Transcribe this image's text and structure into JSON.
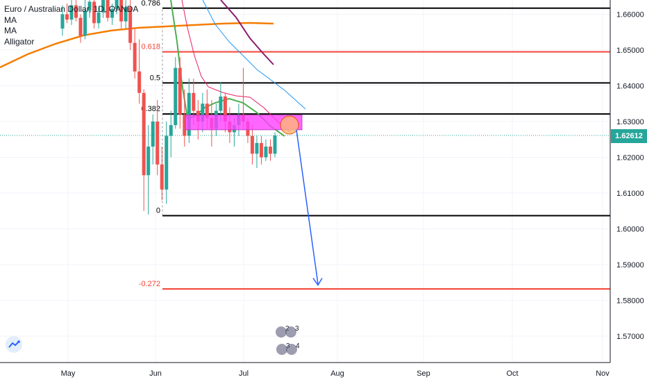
{
  "legend": {
    "symbol": "Euro / Australian Dollar, 1D, OANDA",
    "ma1": "MA",
    "ma2": "MA",
    "alligator": "Alligator"
  },
  "price_tag": "1.62612",
  "colors": {
    "up": "#26a69a",
    "down": "#ef5350",
    "fib_black": "#000000",
    "fib_red": "#f44336",
    "ma_orange": "#f57c00",
    "jaw": "#2196f3",
    "teeth": "#e91e63",
    "lips": "#4caf50",
    "purple": "#8e1b6c",
    "zone": "#ff40ff",
    "arrow": "#2962ff",
    "price_line": "#26a69a"
  },
  "chart_data": {
    "type": "candlestick",
    "y_ticks": [
      "1.57000",
      "1.58000",
      "1.59000",
      "1.60000",
      "1.61000",
      "1.62000",
      "1.63000",
      "1.64000",
      "1.65000",
      "1.66000"
    ],
    "x_ticks": [
      "May",
      "Jun",
      "Jul",
      "Aug",
      "Sep",
      "Oct",
      "Nov"
    ],
    "fib_labels": [
      "0.786",
      "0.618",
      "0.5",
      "0.382",
      "0",
      "-0.272"
    ],
    "fib_levels": [
      {
        "label": "0.786",
        "price": 1.6617,
        "color": "black"
      },
      {
        "label": "0.618",
        "price": 1.6495,
        "color": "red"
      },
      {
        "label": "0.5",
        "price": 1.6408,
        "color": "black"
      },
      {
        "label": "0.382",
        "price": 1.6321,
        "color": "black"
      },
      {
        "label": "0",
        "price": 1.6037,
        "color": "black"
      },
      {
        "label": "-0.272",
        "price": 1.5832,
        "color": "red"
      }
    ],
    "last_price": 1.62612,
    "zone": {
      "from": 1.6277,
      "to": 1.6318
    },
    "projection": {
      "from": 1.6265,
      "to": 1.5835
    },
    "candles": [
      [
        1.656,
        1.6625,
        1.654,
        1.66
      ],
      [
        1.66,
        1.663,
        1.6575,
        1.6585
      ],
      [
        1.6585,
        1.664,
        1.657,
        1.6625
      ],
      [
        1.6625,
        1.665,
        1.658,
        1.659
      ],
      [
        1.659,
        1.66,
        1.652,
        1.654
      ],
      [
        1.654,
        1.664,
        1.653,
        1.661
      ],
      [
        1.661,
        1.666,
        1.659,
        1.6635
      ],
      [
        1.6635,
        1.6645,
        1.656,
        1.6575
      ],
      [
        1.6575,
        1.662,
        1.656,
        1.6605
      ],
      [
        1.6605,
        1.666,
        1.659,
        1.6645
      ],
      [
        1.6645,
        1.665,
        1.658,
        1.659
      ],
      [
        1.659,
        1.663,
        1.657,
        1.6615
      ],
      [
        1.6615,
        1.6665,
        1.66,
        1.665
      ],
      [
        1.665,
        1.666,
        1.656,
        1.658
      ],
      [
        1.658,
        1.664,
        1.656,
        1.662
      ],
      [
        1.662,
        1.668,
        1.65,
        1.652
      ],
      [
        1.652,
        1.656,
        1.642,
        1.644
      ],
      [
        1.644,
        1.653,
        1.635,
        1.638
      ],
      [
        1.638,
        1.639,
        1.605,
        1.615
      ],
      [
        1.615,
        1.629,
        1.604,
        1.623
      ],
      [
        1.623,
        1.632,
        1.618,
        1.63
      ],
      [
        1.63,
        1.636,
        1.615,
        1.618
      ],
      [
        1.618,
        1.623,
        1.608,
        1.611
      ],
      [
        1.611,
        1.63,
        1.607,
        1.626
      ],
      [
        1.626,
        1.633,
        1.62,
        1.629
      ],
      [
        1.629,
        1.648,
        1.628,
        1.645
      ],
      [
        1.645,
        1.648,
        1.628,
        1.632
      ],
      [
        1.632,
        1.639,
        1.623,
        1.626
      ],
      [
        1.626,
        1.642,
        1.624,
        1.638
      ],
      [
        1.638,
        1.642,
        1.629,
        1.633
      ],
      [
        1.633,
        1.636,
        1.625,
        1.63
      ],
      [
        1.63,
        1.638,
        1.627,
        1.635
      ],
      [
        1.635,
        1.639,
        1.628,
        1.631
      ],
      [
        1.631,
        1.636,
        1.623,
        1.628
      ],
      [
        1.628,
        1.635,
        1.626,
        1.633
      ],
      [
        1.633,
        1.641,
        1.63,
        1.637
      ],
      [
        1.637,
        1.638,
        1.627,
        1.63
      ],
      [
        1.63,
        1.634,
        1.624,
        1.627
      ],
      [
        1.627,
        1.631,
        1.623,
        1.629
      ],
      [
        1.629,
        1.635,
        1.626,
        1.632
      ],
      [
        1.632,
        1.645,
        1.628,
        1.63
      ],
      [
        1.63,
        1.631,
        1.624,
        1.626
      ],
      [
        1.626,
        1.629,
        1.618,
        1.621
      ],
      [
        1.621,
        1.626,
        1.617,
        1.624
      ],
      [
        1.624,
        1.626,
        1.618,
        1.62
      ],
      [
        1.62,
        1.625,
        1.619,
        1.623
      ],
      [
        1.623,
        1.625,
        1.619,
        1.621
      ],
      [
        1.621,
        1.627,
        1.62,
        1.6261
      ]
    ],
    "annotations": [
      "2",
      "3",
      "3",
      "4"
    ]
  }
}
